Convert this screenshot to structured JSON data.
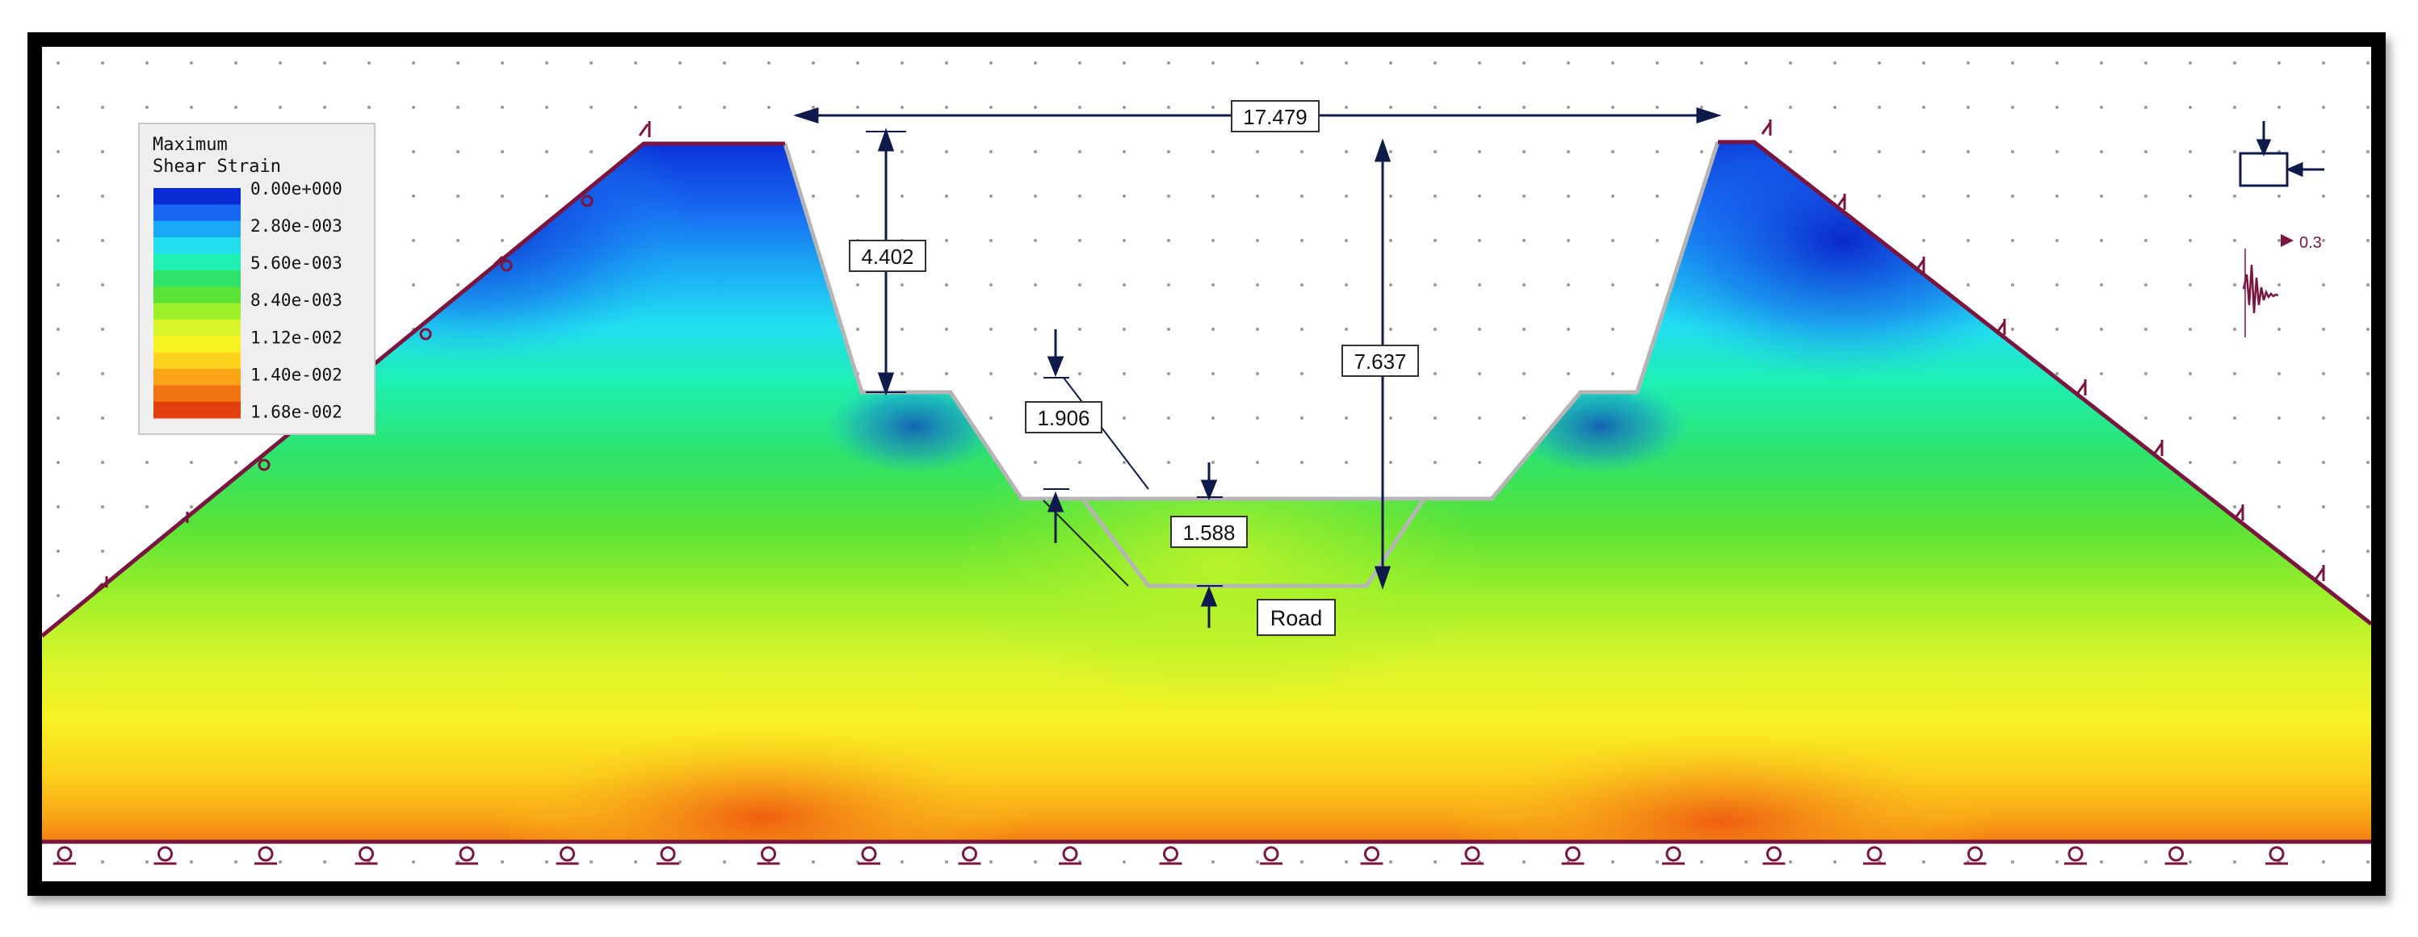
{
  "legend": {
    "title_line1": "Maximum",
    "title_line2": "Shear Strain",
    "labels": [
      "0.00e+000",
      "2.80e-003",
      "5.60e-003",
      "8.40e-003",
      "1.12e-002",
      "1.40e-002",
      "1.68e-002"
    ],
    "scale_colors": [
      "#0a2bd6",
      "#1766f0",
      "#1aa7f5",
      "#22e0f0",
      "#1df0b0",
      "#2de36b",
      "#59e337",
      "#9ff02a",
      "#d9f52a",
      "#f7f224",
      "#fcd21c",
      "#f9a515",
      "#f37412",
      "#e2400c"
    ]
  },
  "dimensions": {
    "top_width": "17.479",
    "left_upper_height": "4.402",
    "total_height": "7.637",
    "middle_step": "1.906",
    "road_depth": "1.588"
  },
  "labels": {
    "road": "Road",
    "seismic_value": "0.3"
  },
  "colors": {
    "boundary": "#7a1540",
    "dimension_line": "#0d1a4a",
    "excavation_edge": "#b5b5b5"
  }
}
